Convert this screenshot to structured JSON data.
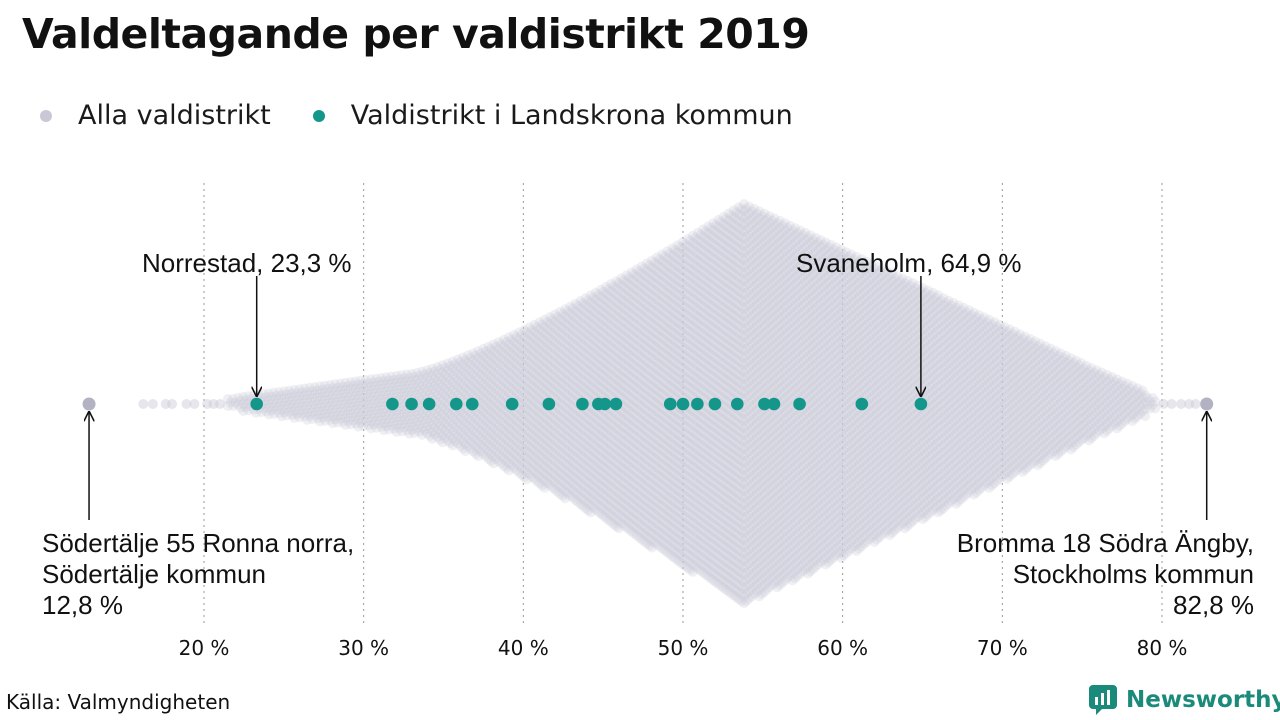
{
  "page": {
    "title": "Valdeltagande per valdistrikt 2019",
    "source": "Källa: Valmyndigheten",
    "logo_text": "Newsworthy"
  },
  "colors": {
    "all_districts": "#c9c8d6",
    "landskrona": "#14968a",
    "grid": "#9a9a9a",
    "brand": "#1a8a7a"
  },
  "chart_data": {
    "type": "scatter",
    "subtype": "beeswarm",
    "title": "Valdeltagande per valdistrikt 2019",
    "xlabel": "",
    "ylabel": "",
    "xlim": [
      10,
      86
    ],
    "x_ticks": [
      20,
      30,
      40,
      50,
      60,
      70,
      80
    ],
    "x_tick_labels": [
      "20 %",
      "30 %",
      "40 %",
      "50 %",
      "60 %",
      "70 %",
      "80 %"
    ],
    "grid": true,
    "legend_position": "top-left",
    "series": [
      {
        "name": "Alla valdistrikt",
        "color": "#c9c8d6",
        "extremes": [
          12.8,
          82.8
        ]
      },
      {
        "name": "Valdistrikt i Landskrona kommun",
        "color": "#14968a",
        "values": [
          23.3,
          31.8,
          33.0,
          34.1,
          35.8,
          36.8,
          39.3,
          41.6,
          43.7,
          44.7,
          45.1,
          45.8,
          49.2,
          50.0,
          50.9,
          52.0,
          53.4,
          55.1,
          55.7,
          57.3,
          61.2,
          64.9
        ]
      }
    ],
    "annotations": [
      {
        "id": "norrestad",
        "lines": [
          "Norrestad, 23,3 %"
        ],
        "x": 23.3
      },
      {
        "id": "svaneholm",
        "lines": [
          "Svaneholm, 64,9 %"
        ],
        "x": 64.9
      },
      {
        "id": "sodertalje",
        "lines": [
          "Södertälje 55 Ronna norra,",
          "Södertälje kommun",
          "12,8 %"
        ],
        "x": 12.8
      },
      {
        "id": "bromma",
        "lines": [
          "Bromma 18 Södra Ängby,",
          "Stockholms kommun",
          "82,8 %"
        ],
        "x": 82.8
      }
    ]
  }
}
